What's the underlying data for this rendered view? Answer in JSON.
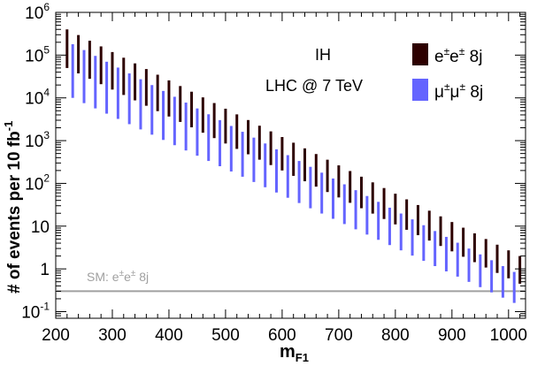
{
  "chart_data": {
    "type": "range-bar",
    "xlabel_main": "m",
    "xlabel_sub": "F1",
    "ylabel_main": "# of events per 10 fb",
    "ylabel_sup": "-1",
    "yscale": "log",
    "xlim": [
      200,
      1030
    ],
    "ylim": [
      0.07,
      1000000
    ],
    "x_ticks": [
      "200",
      "300",
      "400",
      "500",
      "600",
      "700",
      "800",
      "900",
      "1000"
    ],
    "y_ticks": [
      {
        "base": "10",
        "exp": "-1",
        "value": 0.1
      },
      {
        "base": "1",
        "exp": "",
        "value": 1
      },
      {
        "base": "10",
        "exp": "",
        "value": 10
      },
      {
        "base": "10",
        "exp": "2",
        "value": 100
      },
      {
        "base": "10",
        "exp": "3",
        "value": 1000
      },
      {
        "base": "10",
        "exp": "4",
        "value": 10000
      },
      {
        "base": "10",
        "exp": "5",
        "value": 100000
      },
      {
        "base": "10",
        "exp": "6",
        "value": 1000000
      }
    ],
    "annotations": [
      "IH",
      "LHC @ 7 TeV"
    ],
    "legend_position": "top-right",
    "series": [
      {
        "name": "e±e± 8j",
        "label_parts": [
          "e",
          "±",
          "e",
          "±",
          " 8j"
        ],
        "color": "#2d0000",
        "x_start": 220,
        "x_step": 20,
        "count": 41,
        "lo_start": 50000,
        "lo_end": 0.45,
        "hi_start": 400000,
        "hi_end": 2.0
      },
      {
        "name": "μ±μ± 8j",
        "label_parts": [
          "μ",
          "±",
          "μ",
          "±",
          " 8j"
        ],
        "color": "#6464ff",
        "x_start": 230,
        "x_step": 20,
        "count": 40,
        "lo_start": 10000,
        "lo_end": 0.16,
        "hi_start": 180000,
        "hi_end": 0.85
      }
    ],
    "reference_line": {
      "value": 0.3,
      "label_parts": [
        "SM: e",
        "±",
        "e",
        "±",
        " 8j"
      ],
      "color": "#a0a0a0"
    }
  }
}
